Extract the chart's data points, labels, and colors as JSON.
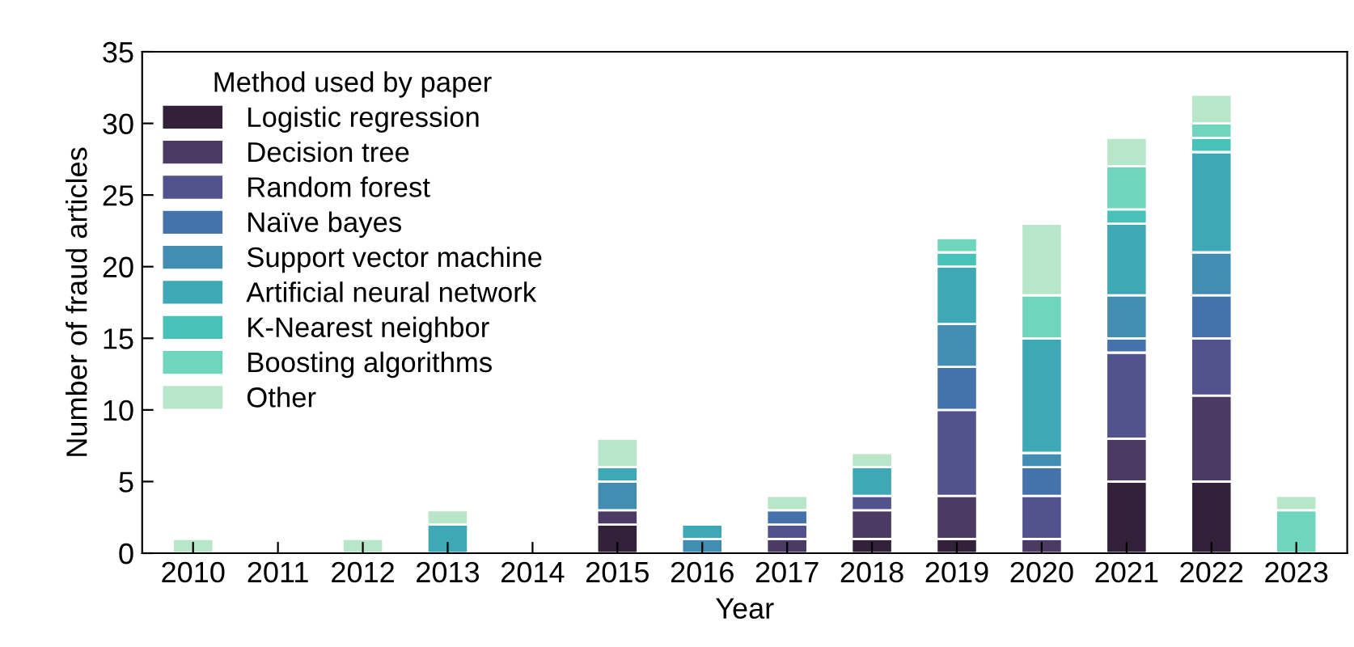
{
  "chart_data": {
    "type": "bar",
    "stacked": true,
    "xlabel": "Year",
    "ylabel": "Number of fraud articles",
    "legend_title": "Method used by paper",
    "legend": "top left",
    "grid": false,
    "categories": [
      "2010",
      "2011",
      "2012",
      "2013",
      "2014",
      "2015",
      "2016",
      "2017",
      "2018",
      "2019",
      "2020",
      "2021",
      "2022",
      "2023"
    ],
    "ylim": [
      0,
      35
    ],
    "yticks": [
      0,
      5,
      10,
      15,
      20,
      25,
      30,
      35
    ],
    "series": [
      {
        "name": "Logistic regression",
        "color": "#33213a",
        "values": [
          null,
          null,
          null,
          null,
          null,
          2,
          null,
          null,
          1,
          1,
          null,
          5,
          5,
          null
        ]
      },
      {
        "name": "Decision tree",
        "color": "#4a3a64",
        "values": [
          null,
          null,
          null,
          null,
          null,
          1,
          null,
          1,
          2,
          3,
          1,
          3,
          6,
          null
        ]
      },
      {
        "name": "Random forest",
        "color": "#52528f",
        "values": [
          null,
          null,
          null,
          null,
          null,
          null,
          null,
          1,
          1,
          6,
          3,
          6,
          4,
          null
        ]
      },
      {
        "name": "Naïve bayes",
        "color": "#4672ab",
        "values": [
          null,
          null,
          null,
          null,
          null,
          null,
          null,
          1,
          null,
          3,
          2,
          1,
          3,
          null
        ]
      },
      {
        "name": "Support vector machine",
        "color": "#438cb2",
        "values": [
          null,
          null,
          null,
          null,
          null,
          2,
          1,
          null,
          null,
          3,
          1,
          3,
          3,
          null
        ]
      },
      {
        "name": "Artificial neural network",
        "color": "#3fa8b7",
        "values": [
          null,
          null,
          null,
          2,
          null,
          1,
          1,
          null,
          2,
          4,
          8,
          5,
          7,
          null
        ]
      },
      {
        "name": "K-Nearest neighbor",
        "color": "#48c1b8",
        "values": [
          null,
          null,
          null,
          null,
          null,
          null,
          null,
          null,
          null,
          1,
          null,
          1,
          1,
          null
        ]
      },
      {
        "name": "Boosting algorithms",
        "color": "#6fd6bd",
        "values": [
          null,
          null,
          null,
          null,
          null,
          null,
          null,
          null,
          null,
          1,
          3,
          3,
          1,
          3
        ]
      },
      {
        "name": "Other",
        "color": "#b8e6c9",
        "values": [
          1,
          null,
          1,
          1,
          null,
          2,
          null,
          1,
          1,
          null,
          5,
          2,
          2,
          1
        ]
      }
    ]
  }
}
